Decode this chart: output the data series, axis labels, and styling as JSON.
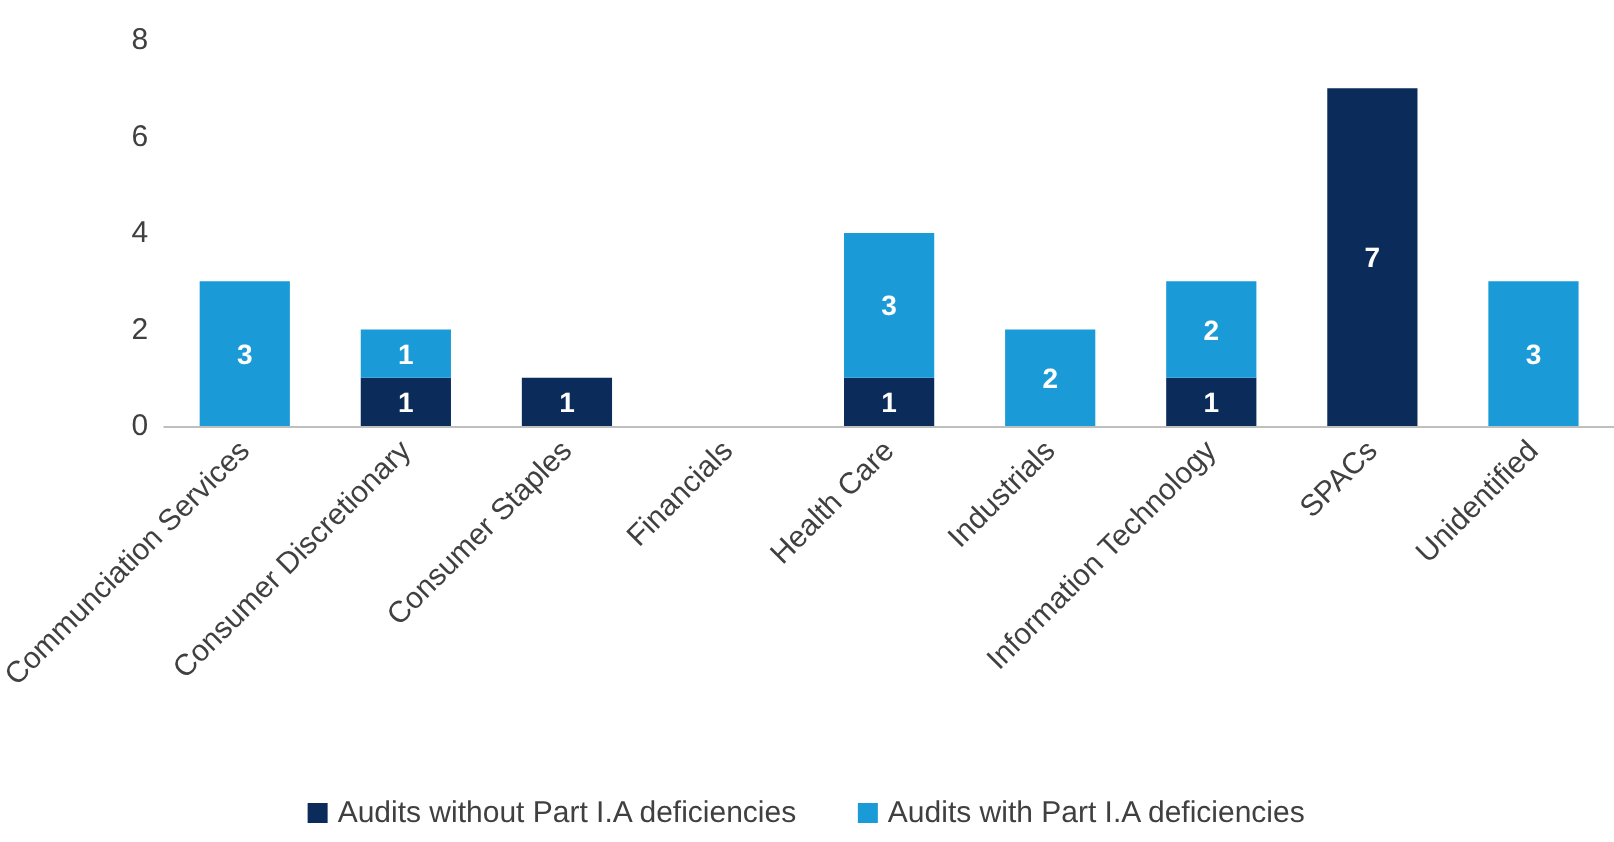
{
  "chart_data": {
    "type": "bar",
    "stacked": true,
    "categories": [
      "Communciation Services",
      "Consumer Discretionary",
      "Consumer Staples",
      "Financials",
      "Health Care",
      "Industrials",
      "Information Technology",
      "SPACs",
      "Unidentified"
    ],
    "series": [
      {
        "name": "Audits without Part I.A deficiencies",
        "color": "#0b2c5a",
        "values": [
          0,
          1,
          1,
          0,
          1,
          0,
          1,
          7,
          0
        ],
        "value_labels": [
          null,
          "1",
          "1",
          null,
          "1",
          null,
          "1",
          "7",
          null
        ]
      },
      {
        "name": "Audits with Part I.A deficiencies",
        "color": "#1a9bd7",
        "values": [
          3,
          1,
          0,
          0,
          3,
          2,
          2,
          0,
          3
        ],
        "value_labels": [
          "3",
          "1",
          null,
          null,
          "3",
          "2",
          "2",
          null,
          "3"
        ]
      }
    ],
    "ylim": [
      0,
      8
    ],
    "yticks": [
      0,
      2,
      4,
      6,
      8
    ],
    "grid": false,
    "legend": "bottom"
  }
}
